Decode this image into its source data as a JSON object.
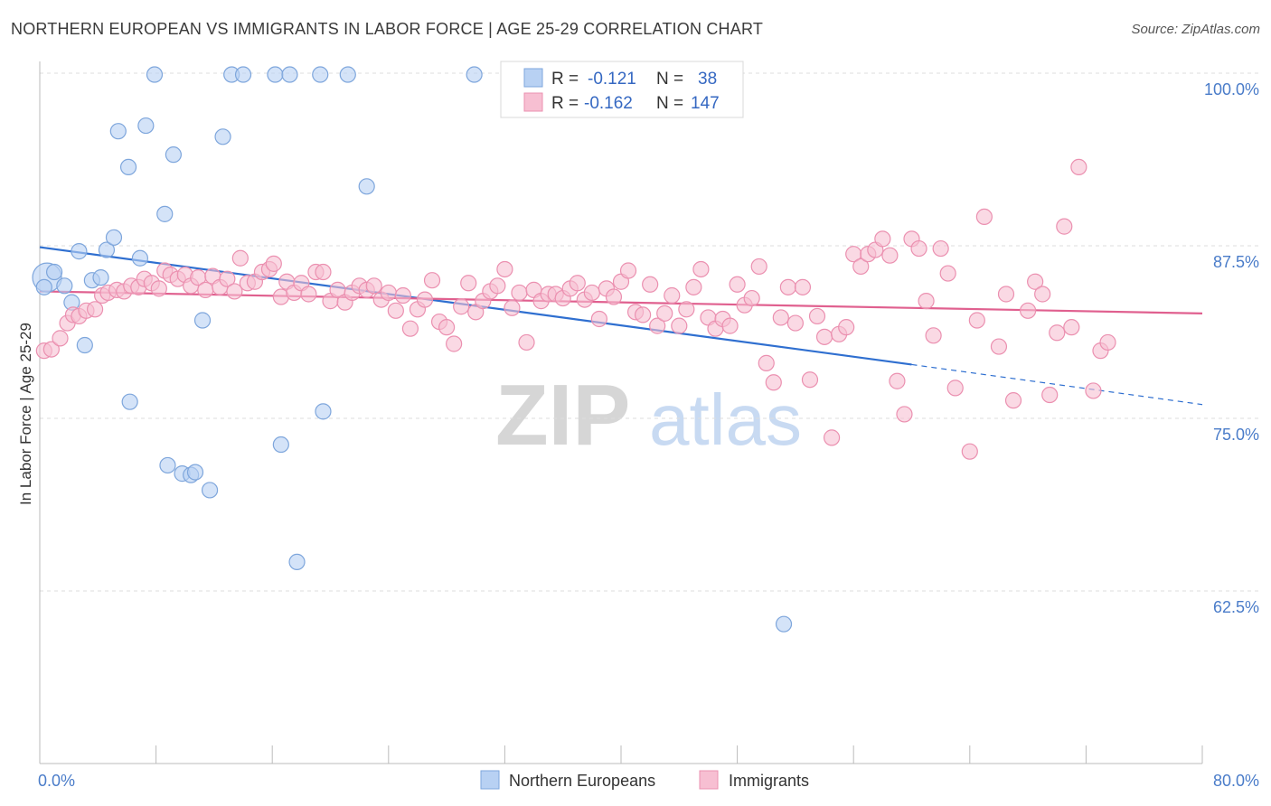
{
  "header": {
    "title": "NORTHERN EUROPEAN VS IMMIGRANTS IN LABOR FORCE | AGE 25-29 CORRELATION CHART",
    "source": "Source: ZipAtlas.com"
  },
  "watermark": {
    "zip": "ZIP",
    "atlas": "atlas"
  },
  "colors": {
    "blue_fill": "#b8d1f3",
    "blue_stroke": "#7ea6dc",
    "blue_line": "#2f6fd0",
    "pink_fill": "#f7bfd2",
    "pink_stroke": "#eb90b0",
    "pink_line": "#e0608f",
    "axis_text": "#4a7cc9",
    "grid": "#dddddd"
  },
  "chart_data": {
    "type": "scatter",
    "xlabel": "",
    "ylabel": "In Labor Force | Age 25-29",
    "xlim": [
      0,
      80
    ],
    "ylim": [
      50,
      103
    ],
    "x_tick_labels": [
      {
        "value": 0,
        "label": "0.0%"
      },
      {
        "value": 80,
        "label": "80.0%"
      }
    ],
    "y_tick_labels": [
      {
        "value": 100,
        "label": "100.0%"
      },
      {
        "value": 87.5,
        "label": "87.5%"
      },
      {
        "value": 75,
        "label": "75.0%"
      },
      {
        "value": 62.5,
        "label": "62.5%"
      }
    ],
    "legend_top": [
      {
        "r_label": "R =",
        "r_value": "-0.121",
        "n_label": "N =",
        "n_value": "38",
        "series": "blue"
      },
      {
        "r_label": "R =",
        "r_value": "-0.162",
        "n_label": "N =",
        "n_value": "147",
        "series": "pink"
      }
    ],
    "legend_bottom": [
      {
        "name": "Northern Europeans",
        "series": "blue"
      },
      {
        "name": "Immigrants",
        "series": "pink"
      }
    ],
    "series": [
      {
        "name": "Northern Europeans",
        "color": "blue",
        "trend": {
          "x0": 0,
          "y0": 87.4,
          "x1": 60,
          "y1": 78.9,
          "dash_to_x": 80,
          "dash_to_y": 76.0
        },
        "points": [
          [
            0.5,
            85.2,
            2
          ],
          [
            1.0,
            85.6,
            1
          ],
          [
            1.7,
            84.6,
            1
          ],
          [
            2.2,
            83.4,
            1
          ],
          [
            2.7,
            87.1,
            1
          ],
          [
            3.1,
            80.3,
            1
          ],
          [
            3.6,
            85.0,
            1
          ],
          [
            4.2,
            85.2,
            1
          ],
          [
            4.6,
            87.2,
            1
          ],
          [
            5.1,
            88.1,
            1
          ],
          [
            5.4,
            95.8,
            1
          ],
          [
            6.1,
            93.2,
            1
          ],
          [
            6.2,
            76.2,
            1
          ],
          [
            6.9,
            86.6,
            1
          ],
          [
            7.3,
            96.2,
            1
          ],
          [
            7.9,
            99.9,
            1
          ],
          [
            8.6,
            89.8,
            1
          ],
          [
            8.8,
            71.6,
            1
          ],
          [
            9.2,
            94.1,
            1
          ],
          [
            9.8,
            71.0,
            1
          ],
          [
            10.4,
            70.9,
            1
          ],
          [
            10.7,
            71.1,
            1
          ],
          [
            11.2,
            82.1,
            1
          ],
          [
            11.7,
            69.8,
            1
          ],
          [
            12.6,
            95.4,
            1
          ],
          [
            13.2,
            99.9,
            1
          ],
          [
            14.0,
            99.9,
            1
          ],
          [
            16.2,
            99.9,
            1
          ],
          [
            16.6,
            73.1,
            1
          ],
          [
            17.2,
            99.9,
            1
          ],
          [
            17.7,
            64.6,
            1
          ],
          [
            19.3,
            99.9,
            1
          ],
          [
            19.5,
            75.5,
            1
          ],
          [
            21.2,
            99.9,
            1
          ],
          [
            22.5,
            91.8,
            1
          ],
          [
            29.9,
            99.9,
            1
          ],
          [
            51.2,
            60.1,
            1
          ],
          [
            0.3,
            84.5,
            1
          ]
        ]
      },
      {
        "name": "Immigrants",
        "color": "pink",
        "trend": {
          "x0": 0,
          "y0": 84.2,
          "x1": 80,
          "y1": 82.6
        },
        "points": [
          [
            0.3,
            79.9
          ],
          [
            0.8,
            80.0
          ],
          [
            1.4,
            80.8
          ],
          [
            1.9,
            81.9
          ],
          [
            2.3,
            82.5
          ],
          [
            2.7,
            82.4
          ],
          [
            3.2,
            82.8
          ],
          [
            3.8,
            82.9
          ],
          [
            4.3,
            83.9
          ],
          [
            4.7,
            84.1
          ],
          [
            5.3,
            84.3
          ],
          [
            5.8,
            84.2
          ],
          [
            6.3,
            84.6
          ],
          [
            6.8,
            84.5
          ],
          [
            7.2,
            85.1
          ],
          [
            7.7,
            84.8
          ],
          [
            8.2,
            84.4
          ],
          [
            8.6,
            85.7
          ],
          [
            9.0,
            85.4
          ],
          [
            9.5,
            85.1
          ],
          [
            10.0,
            85.4
          ],
          [
            10.4,
            84.6
          ],
          [
            10.9,
            85.2
          ],
          [
            11.4,
            84.3
          ],
          [
            11.9,
            85.3
          ],
          [
            12.4,
            84.5
          ],
          [
            12.9,
            85.1
          ],
          [
            13.4,
            84.2
          ],
          [
            13.8,
            86.6
          ],
          [
            14.3,
            84.8
          ],
          [
            14.8,
            84.9
          ],
          [
            15.3,
            85.6
          ],
          [
            15.8,
            85.8
          ],
          [
            16.1,
            86.2
          ],
          [
            16.6,
            83.8
          ],
          [
            17.0,
            84.9
          ],
          [
            17.5,
            84.1
          ],
          [
            18.0,
            84.8
          ],
          [
            18.5,
            84.0
          ],
          [
            19.0,
            85.6
          ],
          [
            19.5,
            85.6
          ],
          [
            20.0,
            83.5
          ],
          [
            20.5,
            84.3
          ],
          [
            21.0,
            83.4
          ],
          [
            21.5,
            84.1
          ],
          [
            22.0,
            84.6
          ],
          [
            22.5,
            84.3
          ],
          [
            23.0,
            84.6
          ],
          [
            23.5,
            83.6
          ],
          [
            24.0,
            84.1
          ],
          [
            24.5,
            82.8
          ],
          [
            25.0,
            83.9
          ],
          [
            25.5,
            81.5
          ],
          [
            26.0,
            82.9
          ],
          [
            26.5,
            83.6
          ],
          [
            27.0,
            85.0
          ],
          [
            27.5,
            82.0
          ],
          [
            28.0,
            81.6
          ],
          [
            28.5,
            80.4
          ],
          [
            29.0,
            83.1
          ],
          [
            29.5,
            84.8
          ],
          [
            30.0,
            82.7
          ],
          [
            30.5,
            83.5
          ],
          [
            31.0,
            84.2
          ],
          [
            31.5,
            84.6
          ],
          [
            32.0,
            85.8
          ],
          [
            32.5,
            83.0
          ],
          [
            33.0,
            84.1
          ],
          [
            33.5,
            80.5
          ],
          [
            34.0,
            84.3
          ],
          [
            34.5,
            83.5
          ],
          [
            35.0,
            84.0
          ],
          [
            35.5,
            84.0
          ],
          [
            36.0,
            83.7
          ],
          [
            36.5,
            84.4
          ],
          [
            37.0,
            84.8
          ],
          [
            37.5,
            83.6
          ],
          [
            38.0,
            84.1
          ],
          [
            38.5,
            82.2
          ],
          [
            39.0,
            84.4
          ],
          [
            39.5,
            83.8
          ],
          [
            40.0,
            84.9
          ],
          [
            40.5,
            85.7
          ],
          [
            41.0,
            82.7
          ],
          [
            41.5,
            82.5
          ],
          [
            42.0,
            84.7
          ],
          [
            42.5,
            81.7
          ],
          [
            43.0,
            82.6
          ],
          [
            43.5,
            83.9
          ],
          [
            44.0,
            81.7
          ],
          [
            44.5,
            82.9
          ],
          [
            45.0,
            84.5
          ],
          [
            45.5,
            85.8
          ],
          [
            46.0,
            82.3
          ],
          [
            46.5,
            81.5
          ],
          [
            47.0,
            82.2
          ],
          [
            47.5,
            81.7
          ],
          [
            48.0,
            84.7
          ],
          [
            48.5,
            83.2
          ],
          [
            49.0,
            83.7
          ],
          [
            49.5,
            86.0
          ],
          [
            50.0,
            79.0
          ],
          [
            50.5,
            77.6
          ],
          [
            51.0,
            82.3
          ],
          [
            51.5,
            84.5
          ],
          [
            52.0,
            81.9
          ],
          [
            52.5,
            84.5
          ],
          [
            53.0,
            77.8
          ],
          [
            53.5,
            82.4
          ],
          [
            54.0,
            80.9
          ],
          [
            54.5,
            73.6
          ],
          [
            55.0,
            81.1
          ],
          [
            55.5,
            81.6
          ],
          [
            56.0,
            86.9
          ],
          [
            56.5,
            86.0
          ],
          [
            57.0,
            86.9
          ],
          [
            57.5,
            87.2
          ],
          [
            58.0,
            88.0
          ],
          [
            58.5,
            86.8
          ],
          [
            59.0,
            77.7
          ],
          [
            59.5,
            75.3
          ],
          [
            60.0,
            88.0
          ],
          [
            60.5,
            87.3
          ],
          [
            61.0,
            83.5
          ],
          [
            61.5,
            81.0
          ],
          [
            62.0,
            87.3
          ],
          [
            62.5,
            85.5
          ],
          [
            63.0,
            77.2
          ],
          [
            64.0,
            72.6
          ],
          [
            64.5,
            82.1
          ],
          [
            65.0,
            89.6
          ],
          [
            66.0,
            80.2
          ],
          [
            66.5,
            84.0
          ],
          [
            67.0,
            76.3
          ],
          [
            68.0,
            82.8
          ],
          [
            68.5,
            84.9
          ],
          [
            69.0,
            84.0
          ],
          [
            69.5,
            76.7
          ],
          [
            70.0,
            81.2
          ],
          [
            70.5,
            88.9
          ],
          [
            71.0,
            81.6
          ],
          [
            71.5,
            93.2
          ],
          [
            72.5,
            77.0
          ],
          [
            73.0,
            79.9
          ],
          [
            73.5,
            80.5
          ]
        ]
      }
    ]
  }
}
